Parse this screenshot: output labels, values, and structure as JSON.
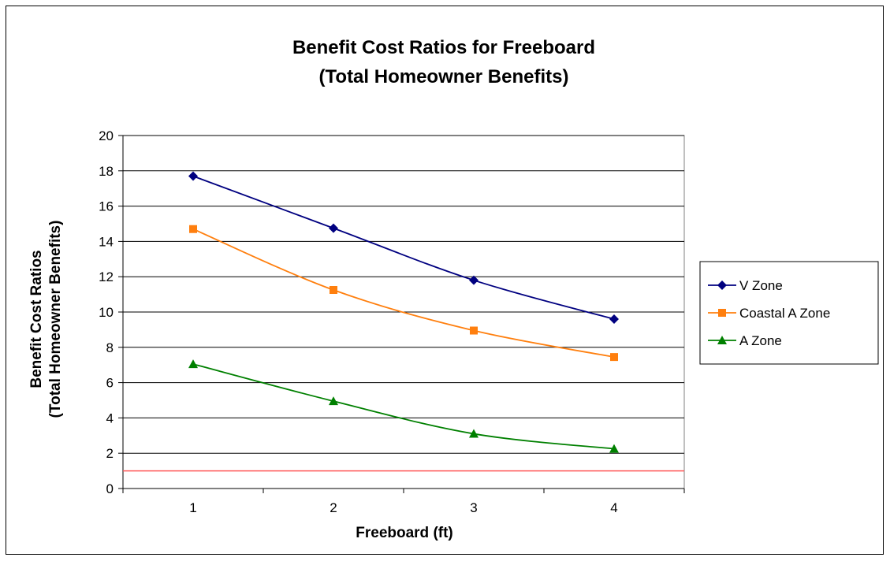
{
  "chart_data": {
    "type": "line",
    "title_lines": [
      "Benefit Cost Ratios for Freeboard",
      "(Total Homeowner Benefits)"
    ],
    "xlabel": "Freeboard (ft)",
    "ylabel_lines": [
      "Benefit Cost Ratios",
      "(Total Homeowner Benefits)"
    ],
    "x": [
      1,
      2,
      3,
      4
    ],
    "x_tick_labels": [
      "1",
      "2",
      "3",
      "4"
    ],
    "ylim": [
      0,
      20
    ],
    "y_ticks": [
      0,
      2,
      4,
      6,
      8,
      10,
      12,
      14,
      16,
      18,
      20
    ],
    "y_tick_labels": [
      "0",
      "2",
      "4",
      "6",
      "8",
      "10",
      "12",
      "14",
      "16",
      "18",
      "20"
    ],
    "grid": "horizontal",
    "legend_position": "right",
    "reference_line": {
      "y": 1,
      "color": "#ff5a5a"
    },
    "series": [
      {
        "name": "V Zone",
        "values": [
          17.7,
          14.75,
          11.8,
          9.6
        ],
        "color": "#000080",
        "marker": "diamond"
      },
      {
        "name": "Coastal A Zone",
        "values": [
          14.7,
          11.25,
          8.95,
          7.45
        ],
        "color": "#ff7f0e",
        "marker": "square"
      },
      {
        "name": "A Zone",
        "values": [
          7.05,
          4.95,
          3.1,
          2.25
        ],
        "color": "#008000",
        "marker": "triangle"
      }
    ]
  }
}
